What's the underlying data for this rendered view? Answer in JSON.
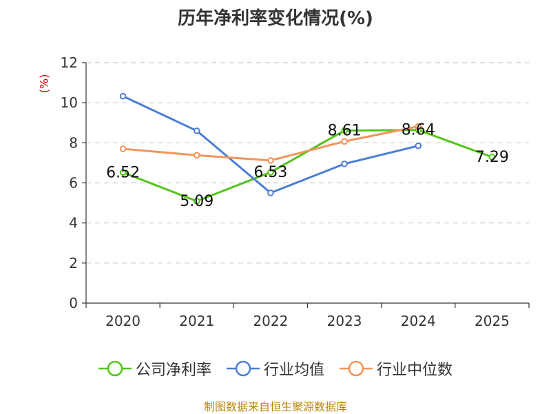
{
  "chart_data": {
    "type": "line",
    "title": "历年净利率变化情况(%)",
    "ylabel": "(%)",
    "xlabel": "",
    "categories": [
      "2020",
      "2021",
      "2022",
      "2023",
      "2024",
      "2025"
    ],
    "ylim": [
      0,
      12
    ],
    "yticks": [
      0,
      2,
      4,
      6,
      8,
      10,
      12
    ],
    "grid": true,
    "legend_position": "bottom",
    "series": [
      {
        "name": "公司净利率",
        "color": "#52c41a",
        "values": [
          6.52,
          5.09,
          6.53,
          8.61,
          8.64,
          7.29
        ],
        "labels": [
          "6.52",
          "5.09",
          "6.53",
          "8.61",
          "8.64",
          "7.29"
        ]
      },
      {
        "name": "行业均值",
        "color": "#4a7fd6",
        "values": [
          10.33,
          8.6,
          5.5,
          6.95,
          7.85,
          null
        ]
      },
      {
        "name": "行业中位数",
        "color": "#f4935a",
        "values": [
          7.7,
          7.38,
          7.12,
          8.07,
          8.82,
          null
        ]
      }
    ]
  },
  "source": "制图数据来自恒生聚源数据库"
}
